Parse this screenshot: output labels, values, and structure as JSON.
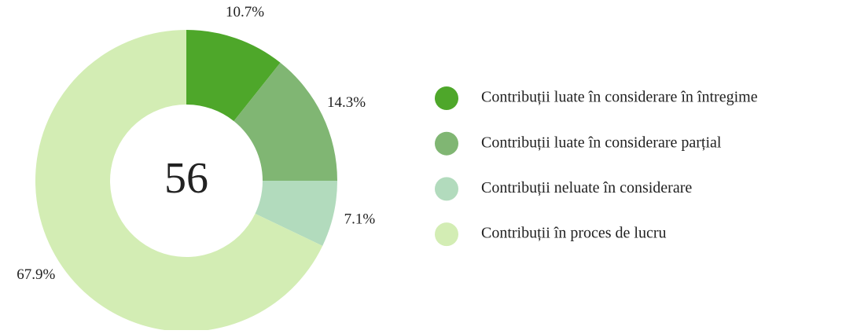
{
  "chart_data": {
    "type": "donut",
    "center_label": 56,
    "categories": [
      "Contribuții luate în considerare în întregime",
      "Contribuții luate în considerare parțial",
      "Contribuții neluate în considerare",
      "Contribuții în proces de lucru"
    ],
    "values": [
      10.7,
      14.3,
      7.1,
      67.9
    ],
    "value_labels": [
      "10.7%",
      "14.3%",
      "7.1%",
      "67.9%"
    ],
    "colors": [
      "#4ea72a",
      "#80b673",
      "#b2dbbd",
      "#d3edb4"
    ],
    "legend": "right"
  }
}
